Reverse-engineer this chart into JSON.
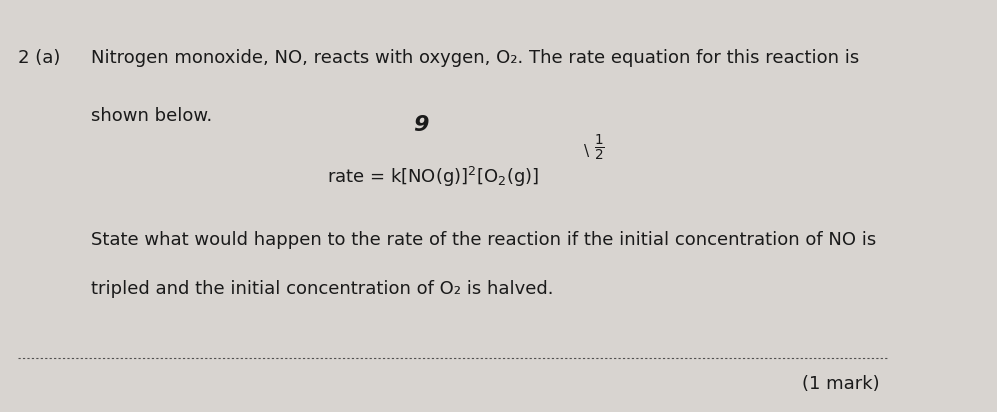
{
  "background_color": "#d8d4d0",
  "text_color": "#1a1a1a",
  "question_number": "2 (a)",
  "line1": "Nitrogen monoxide, NO, reacts with oxygen, O₂. The rate equation for this reaction is",
  "line2": "shown below.",
  "rate_eq_main": "rate = k[NO(g)]²[O₂(g)]",
  "rate_eq_superscript_handwritten": "9",
  "rate_eq_power_handwritten": "½",
  "state_line1": "State what would happen to the rate of the reaction if the initial concentration of NO is",
  "state_line2": "tripled and the initial concentration of O₂ is halved.",
  "mark_text": "(1 mark)",
  "dashed_line_y": 0.12,
  "font_size_main": 13,
  "font_size_small": 12
}
